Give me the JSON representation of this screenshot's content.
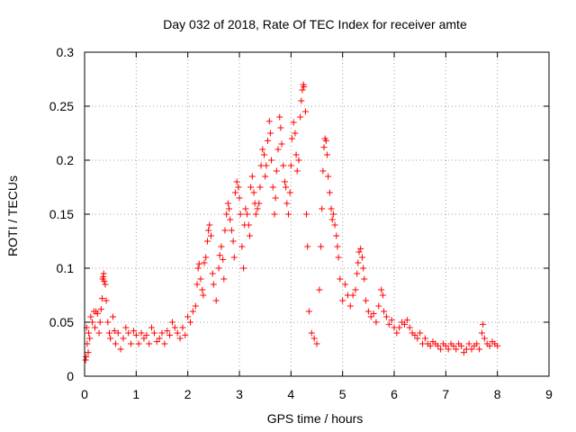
{
  "chart_data": {
    "type": "scatter",
    "title": "Day 032 of 2018, Rate Of TEC Index for receiver amte",
    "xlabel": "GPS time / hours",
    "ylabel": "ROTI / TECUs",
    "xlim": [
      0,
      9
    ],
    "ylim": [
      0,
      0.3
    ],
    "xticks": [
      0,
      1,
      2,
      3,
      4,
      5,
      6,
      7,
      8,
      9
    ],
    "yticks": [
      0,
      0.05,
      0.1,
      0.15,
      0.2,
      0.25,
      0.3
    ],
    "ytick_labels": [
      "0",
      "0.05",
      "0.1",
      "0.15",
      "0.2",
      "0.25",
      "0.3"
    ],
    "grid": true,
    "marker": "+",
    "color": "#ff0000",
    "series": [
      {
        "name": "ROTI",
        "points": [
          [
            0.02,
            0.015
          ],
          [
            0.03,
            0.018
          ],
          [
            0.04,
            0.045
          ],
          [
            0.05,
            0.03
          ],
          [
            0.07,
            0.022
          ],
          [
            0.08,
            0.04
          ],
          [
            0.1,
            0.035
          ],
          [
            0.12,
            0.055
          ],
          [
            0.15,
            0.05
          ],
          [
            0.18,
            0.06
          ],
          [
            0.2,
            0.045
          ],
          [
            0.22,
            0.06
          ],
          [
            0.25,
            0.058
          ],
          [
            0.28,
            0.04
          ],
          [
            0.3,
            0.05
          ],
          [
            0.32,
            0.062
          ],
          [
            0.34,
            0.072
          ],
          [
            0.35,
            0.09
          ],
          [
            0.36,
            0.092
          ],
          [
            0.37,
            0.095
          ],
          [
            0.38,
            0.088
          ],
          [
            0.4,
            0.085
          ],
          [
            0.42,
            0.07
          ],
          [
            0.45,
            0.05
          ],
          [
            0.48,
            0.04
          ],
          [
            0.5,
            0.035
          ],
          [
            0.55,
            0.055
          ],
          [
            0.58,
            0.042
          ],
          [
            0.6,
            0.03
          ],
          [
            0.65,
            0.04
          ],
          [
            0.7,
            0.025
          ],
          [
            0.75,
            0.035
          ],
          [
            0.8,
            0.045
          ],
          [
            0.85,
            0.04
          ],
          [
            0.9,
            0.03
          ],
          [
            0.95,
            0.042
          ],
          [
            1.0,
            0.038
          ],
          [
            1.05,
            0.03
          ],
          [
            1.1,
            0.04
          ],
          [
            1.15,
            0.035
          ],
          [
            1.2,
            0.038
          ],
          [
            1.25,
            0.03
          ],
          [
            1.3,
            0.045
          ],
          [
            1.35,
            0.04
          ],
          [
            1.4,
            0.032
          ],
          [
            1.45,
            0.035
          ],
          [
            1.5,
            0.04
          ],
          [
            1.55,
            0.03
          ],
          [
            1.6,
            0.042
          ],
          [
            1.65,
            0.038
          ],
          [
            1.7,
            0.05
          ],
          [
            1.75,
            0.045
          ],
          [
            1.8,
            0.04
          ],
          [
            1.85,
            0.035
          ],
          [
            1.9,
            0.045
          ],
          [
            1.95,
            0.038
          ],
          [
            2.0,
            0.055
          ],
          [
            2.05,
            0.05
          ],
          [
            2.1,
            0.06
          ],
          [
            2.15,
            0.065
          ],
          [
            2.18,
            0.085
          ],
          [
            2.2,
            0.1
          ],
          [
            2.22,
            0.104
          ],
          [
            2.25,
            0.09
          ],
          [
            2.28,
            0.08
          ],
          [
            2.3,
            0.075
          ],
          [
            2.32,
            0.105
          ],
          [
            2.35,
            0.11
          ],
          [
            2.38,
            0.125
          ],
          [
            2.4,
            0.135
          ],
          [
            2.42,
            0.14
          ],
          [
            2.45,
            0.13
          ],
          [
            2.48,
            0.095
          ],
          [
            2.5,
            0.085
          ],
          [
            2.55,
            0.07
          ],
          [
            2.6,
            0.1
          ],
          [
            2.62,
            0.112
          ],
          [
            2.65,
            0.12
          ],
          [
            2.68,
            0.108
          ],
          [
            2.7,
            0.09
          ],
          [
            2.72,
            0.135
          ],
          [
            2.75,
            0.15
          ],
          [
            2.78,
            0.16
          ],
          [
            2.8,
            0.155
          ],
          [
            2.82,
            0.145
          ],
          [
            2.85,
            0.135
          ],
          [
            2.88,
            0.125
          ],
          [
            2.9,
            0.11
          ],
          [
            2.92,
            0.17
          ],
          [
            2.95,
            0.18
          ],
          [
            2.98,
            0.175
          ],
          [
            3.0,
            0.165
          ],
          [
            3.02,
            0.15
          ],
          [
            3.05,
            0.12
          ],
          [
            3.08,
            0.1
          ],
          [
            3.1,
            0.14
          ],
          [
            3.12,
            0.155
          ],
          [
            3.15,
            0.15
          ],
          [
            3.18,
            0.14
          ],
          [
            3.2,
            0.13
          ],
          [
            3.22,
            0.175
          ],
          [
            3.25,
            0.185
          ],
          [
            3.28,
            0.17
          ],
          [
            3.3,
            0.16
          ],
          [
            3.32,
            0.15
          ],
          [
            3.35,
            0.155
          ],
          [
            3.38,
            0.16
          ],
          [
            3.4,
            0.175
          ],
          [
            3.42,
            0.195
          ],
          [
            3.45,
            0.21
          ],
          [
            3.48,
            0.205
          ],
          [
            3.5,
            0.185
          ],
          [
            3.52,
            0.195
          ],
          [
            3.55,
            0.218
          ],
          [
            3.58,
            0.236
          ],
          [
            3.6,
            0.225
          ],
          [
            3.62,
            0.2
          ],
          [
            3.65,
            0.175
          ],
          [
            3.68,
            0.15
          ],
          [
            3.7,
            0.165
          ],
          [
            3.72,
            0.19
          ],
          [
            3.75,
            0.21
          ],
          [
            3.78,
            0.24
          ],
          [
            3.8,
            0.23
          ],
          [
            3.82,
            0.215
          ],
          [
            3.85,
            0.195
          ],
          [
            3.88,
            0.18
          ],
          [
            3.9,
            0.175
          ],
          [
            3.92,
            0.16
          ],
          [
            3.95,
            0.15
          ],
          [
            3.98,
            0.17
          ],
          [
            4.0,
            0.195
          ],
          [
            4.02,
            0.22
          ],
          [
            4.05,
            0.235
          ],
          [
            4.08,
            0.225
          ],
          [
            4.1,
            0.205
          ],
          [
            4.12,
            0.19
          ],
          [
            4.15,
            0.2
          ],
          [
            4.18,
            0.24
          ],
          [
            4.2,
            0.255
          ],
          [
            4.22,
            0.265
          ],
          [
            4.24,
            0.27
          ],
          [
            4.25,
            0.268
          ],
          [
            4.28,
            0.245
          ],
          [
            4.3,
            0.15
          ],
          [
            4.32,
            0.12
          ],
          [
            4.35,
            0.06
          ],
          [
            4.4,
            0.04
          ],
          [
            4.45,
            0.035
          ],
          [
            4.5,
            0.03
          ],
          [
            4.55,
            0.08
          ],
          [
            4.58,
            0.12
          ],
          [
            4.6,
            0.155
          ],
          [
            4.62,
            0.19
          ],
          [
            4.64,
            0.212
          ],
          [
            4.66,
            0.22
          ],
          [
            4.68,
            0.218
          ],
          [
            4.7,
            0.205
          ],
          [
            4.72,
            0.185
          ],
          [
            4.75,
            0.17
          ],
          [
            4.78,
            0.155
          ],
          [
            4.8,
            0.145
          ],
          [
            4.82,
            0.15
          ],
          [
            4.85,
            0.14
          ],
          [
            4.88,
            0.13
          ],
          [
            4.9,
            0.12
          ],
          [
            4.92,
            0.11
          ],
          [
            4.95,
            0.09
          ],
          [
            5.0,
            0.07
          ],
          [
            5.05,
            0.085
          ],
          [
            5.1,
            0.075
          ],
          [
            5.15,
            0.065
          ],
          [
            5.2,
            0.075
          ],
          [
            5.25,
            0.08
          ],
          [
            5.28,
            0.095
          ],
          [
            5.3,
            0.105
          ],
          [
            5.32,
            0.115
          ],
          [
            5.35,
            0.118
          ],
          [
            5.38,
            0.11
          ],
          [
            5.4,
            0.1
          ],
          [
            5.42,
            0.09
          ],
          [
            5.45,
            0.07
          ],
          [
            5.5,
            0.06
          ],
          [
            5.55,
            0.055
          ],
          [
            5.6,
            0.058
          ],
          [
            5.65,
            0.05
          ],
          [
            5.7,
            0.065
          ],
          [
            5.75,
            0.08
          ],
          [
            5.78,
            0.075
          ],
          [
            5.8,
            0.06
          ],
          [
            5.85,
            0.055
          ],
          [
            5.9,
            0.048
          ],
          [
            5.95,
            0.052
          ],
          [
            6.0,
            0.045
          ],
          [
            6.05,
            0.04
          ],
          [
            6.1,
            0.045
          ],
          [
            6.15,
            0.05
          ],
          [
            6.2,
            0.048
          ],
          [
            6.25,
            0.052
          ],
          [
            6.3,
            0.045
          ],
          [
            6.35,
            0.04
          ],
          [
            6.4,
            0.038
          ],
          [
            6.45,
            0.035
          ],
          [
            6.5,
            0.04
          ],
          [
            6.55,
            0.03
          ],
          [
            6.6,
            0.035
          ],
          [
            6.65,
            0.03
          ],
          [
            6.7,
            0.028
          ],
          [
            6.75,
            0.032
          ],
          [
            6.8,
            0.03
          ],
          [
            6.85,
            0.028
          ],
          [
            6.9,
            0.025
          ],
          [
            6.95,
            0.03
          ],
          [
            7.0,
            0.028
          ],
          [
            7.05,
            0.025
          ],
          [
            7.1,
            0.03
          ],
          [
            7.15,
            0.028
          ],
          [
            7.2,
            0.025
          ],
          [
            7.25,
            0.03
          ],
          [
            7.3,
            0.028
          ],
          [
            7.35,
            0.022
          ],
          [
            7.4,
            0.025
          ],
          [
            7.45,
            0.03
          ],
          [
            7.5,
            0.025
          ],
          [
            7.55,
            0.028
          ],
          [
            7.6,
            0.03
          ],
          [
            7.65,
            0.025
          ],
          [
            7.7,
            0.04
          ],
          [
            7.72,
            0.048
          ],
          [
            7.75,
            0.035
          ],
          [
            7.8,
            0.03
          ],
          [
            7.85,
            0.028
          ],
          [
            7.9,
            0.032
          ],
          [
            7.95,
            0.03
          ],
          [
            8.0,
            0.028
          ]
        ]
      }
    ]
  }
}
